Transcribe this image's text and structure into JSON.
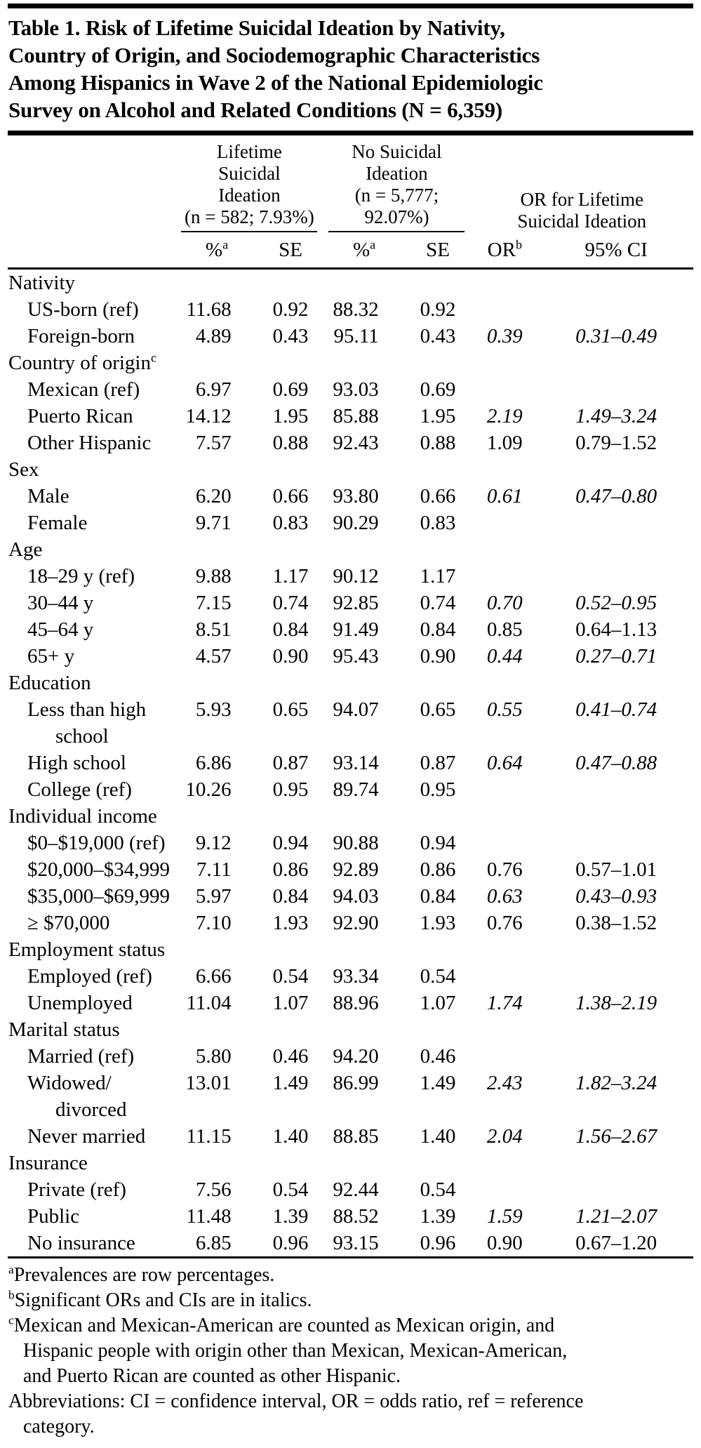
{
  "colors": {
    "text": "#000000",
    "rule": "#000000",
    "background": "#ffffff"
  },
  "title": "Table 1. Risk of Lifetime Suicidal Ideation by Nativity,\nCountry of Origin, and Sociodemographic Characteristics\nAmong Hispanics in Wave 2 of the National Epidemiologic\nSurvey on Alcohol and Related Conditions (N = 6,359)",
  "table": {
    "groups": [
      {
        "label": "Lifetime\nSuicidal\nIdeation\n(n = 582; 7.93%)"
      },
      {
        "label": "No Suicidal\nIdeation\n(n = 5,777;\n92.07%)"
      },
      {
        "label": "OR for Lifetime\nSuicidal Ideation"
      }
    ],
    "subcols": [
      {
        "text": "%",
        "sup": "a"
      },
      {
        "text": "SE"
      },
      {
        "text": "%",
        "sup": "a"
      },
      {
        "text": "SE"
      },
      {
        "text": "OR",
        "sup": "b"
      },
      {
        "text": "95% CI"
      }
    ],
    "rows": [
      {
        "type": "section",
        "label": "Nativity"
      },
      {
        "type": "data",
        "label": "US-born (ref)",
        "cells": [
          "11.68",
          "0.92",
          "88.32",
          "0.92",
          "",
          ""
        ],
        "sig": false
      },
      {
        "type": "data",
        "label": "Foreign-born",
        "cells": [
          "4.89",
          "0.43",
          "95.11",
          "0.43",
          "0.39",
          "0.31–0.49"
        ],
        "sig": true
      },
      {
        "type": "section",
        "label": "Country of origin",
        "sup": "c"
      },
      {
        "type": "data",
        "label": "Mexican (ref)",
        "cells": [
          "6.97",
          "0.69",
          "93.03",
          "0.69",
          "",
          ""
        ],
        "sig": false
      },
      {
        "type": "data",
        "label": "Puerto Rican",
        "cells": [
          "14.12",
          "1.95",
          "85.88",
          "1.95",
          "2.19",
          "1.49–3.24"
        ],
        "sig": true
      },
      {
        "type": "data",
        "label": "Other Hispanic",
        "cells": [
          "7.57",
          "0.88",
          "92.43",
          "0.88",
          "1.09",
          "0.79–1.52"
        ],
        "sig": false
      },
      {
        "type": "section",
        "label": "Sex"
      },
      {
        "type": "data",
        "label": "Male",
        "cells": [
          "6.20",
          "0.66",
          "93.80",
          "0.66",
          "0.61",
          "0.47–0.80"
        ],
        "sig": true
      },
      {
        "type": "data",
        "label": "Female",
        "cells": [
          "9.71",
          "0.83",
          "90.29",
          "0.83",
          "",
          ""
        ],
        "sig": false
      },
      {
        "type": "section",
        "label": "Age"
      },
      {
        "type": "data",
        "label": "18–29 y (ref)",
        "cells": [
          "9.88",
          "1.17",
          "90.12",
          "1.17",
          "",
          ""
        ],
        "sig": false
      },
      {
        "type": "data",
        "label": "30–44 y",
        "cells": [
          "7.15",
          "0.74",
          "92.85",
          "0.74",
          "0.70",
          "0.52–0.95"
        ],
        "sig": true
      },
      {
        "type": "data",
        "label": "45–64 y",
        "cells": [
          "8.51",
          "0.84",
          "91.49",
          "0.84",
          "0.85",
          "0.64–1.13"
        ],
        "sig": false
      },
      {
        "type": "data",
        "label": "65+ y",
        "cells": [
          "4.57",
          "0.90",
          "95.43",
          "0.90",
          "0.44",
          "0.27–0.71"
        ],
        "sig": true
      },
      {
        "type": "section",
        "label": "Education"
      },
      {
        "type": "data",
        "label": "Less than high",
        "label2": "school",
        "cells": [
          "5.93",
          "0.65",
          "94.07",
          "0.65",
          "0.55",
          "0.41–0.74"
        ],
        "sig": true
      },
      {
        "type": "data",
        "label": "High school",
        "cells": [
          "6.86",
          "0.87",
          "93.14",
          "0.87",
          "0.64",
          "0.47–0.88"
        ],
        "sig": true
      },
      {
        "type": "data",
        "label": "College (ref)",
        "cells": [
          "10.26",
          "0.95",
          "89.74",
          "0.95",
          "",
          ""
        ],
        "sig": false
      },
      {
        "type": "section",
        "label": "Individual income"
      },
      {
        "type": "data",
        "label": "$0–$19,000 (ref)",
        "cells": [
          "9.12",
          "0.94",
          "90.88",
          "0.94",
          "",
          ""
        ],
        "sig": false
      },
      {
        "type": "data",
        "label": "$20,000–$34,999",
        "cells": [
          "7.11",
          "0.86",
          "92.89",
          "0.86",
          "0.76",
          "0.57–1.01"
        ],
        "sig": false
      },
      {
        "type": "data",
        "label": "$35,000–$69,999",
        "cells": [
          "5.97",
          "0.84",
          "94.03",
          "0.84",
          "0.63",
          "0.43–0.93"
        ],
        "sig": true
      },
      {
        "type": "data",
        "label": "≥ $70,000",
        "cells": [
          "7.10",
          "1.93",
          "92.90",
          "1.93",
          "0.76",
          "0.38–1.52"
        ],
        "sig": false
      },
      {
        "type": "section",
        "label": "Employment status"
      },
      {
        "type": "data",
        "label": "Employed (ref)",
        "cells": [
          "6.66",
          "0.54",
          "93.34",
          "0.54",
          "",
          ""
        ],
        "sig": false
      },
      {
        "type": "data",
        "label": "Unemployed",
        "cells": [
          "11.04",
          "1.07",
          "88.96",
          "1.07",
          "1.74",
          "1.38–2.19"
        ],
        "sig": true
      },
      {
        "type": "section",
        "label": "Marital status"
      },
      {
        "type": "data",
        "label": "Married (ref)",
        "cells": [
          "5.80",
          "0.46",
          "94.20",
          "0.46",
          "",
          ""
        ],
        "sig": false
      },
      {
        "type": "data",
        "label": "Widowed/",
        "label2": "divorced",
        "cells": [
          "13.01",
          "1.49",
          "86.99",
          "1.49",
          "2.43",
          "1.82–3.24"
        ],
        "sig": true
      },
      {
        "type": "data",
        "label": "Never married",
        "cells": [
          "11.15",
          "1.40",
          "88.85",
          "1.40",
          "2.04",
          "1.56–2.67"
        ],
        "sig": true
      },
      {
        "type": "section",
        "label": "Insurance"
      },
      {
        "type": "data",
        "label": "Private (ref)",
        "cells": [
          "7.56",
          "0.54",
          "92.44",
          "0.54",
          "",
          ""
        ],
        "sig": false
      },
      {
        "type": "data",
        "label": "Public",
        "cells": [
          "11.48",
          "1.39",
          "88.52",
          "1.39",
          "1.59",
          "1.21–2.07"
        ],
        "sig": true
      },
      {
        "type": "data",
        "label": "No insurance",
        "cells": [
          "6.85",
          "0.96",
          "93.15",
          "0.96",
          "0.90",
          "0.67–1.20"
        ],
        "sig": false
      }
    ]
  },
  "footnotes": [
    {
      "sup": "a",
      "text": "Prevalences are row percentages."
    },
    {
      "sup": "b",
      "text": "Significant ORs and CIs are in italics."
    },
    {
      "sup": "c",
      "text": "Mexican and Mexican-American are counted as Mexican origin, and\n   Hispanic people with origin other than Mexican, Mexican-American,\n   and Puerto Rican are counted as other Hispanic."
    },
    {
      "sup": "",
      "text": "Abbreviations: CI = confidence interval, OR = odds ratio, ref = reference\n   category."
    }
  ]
}
